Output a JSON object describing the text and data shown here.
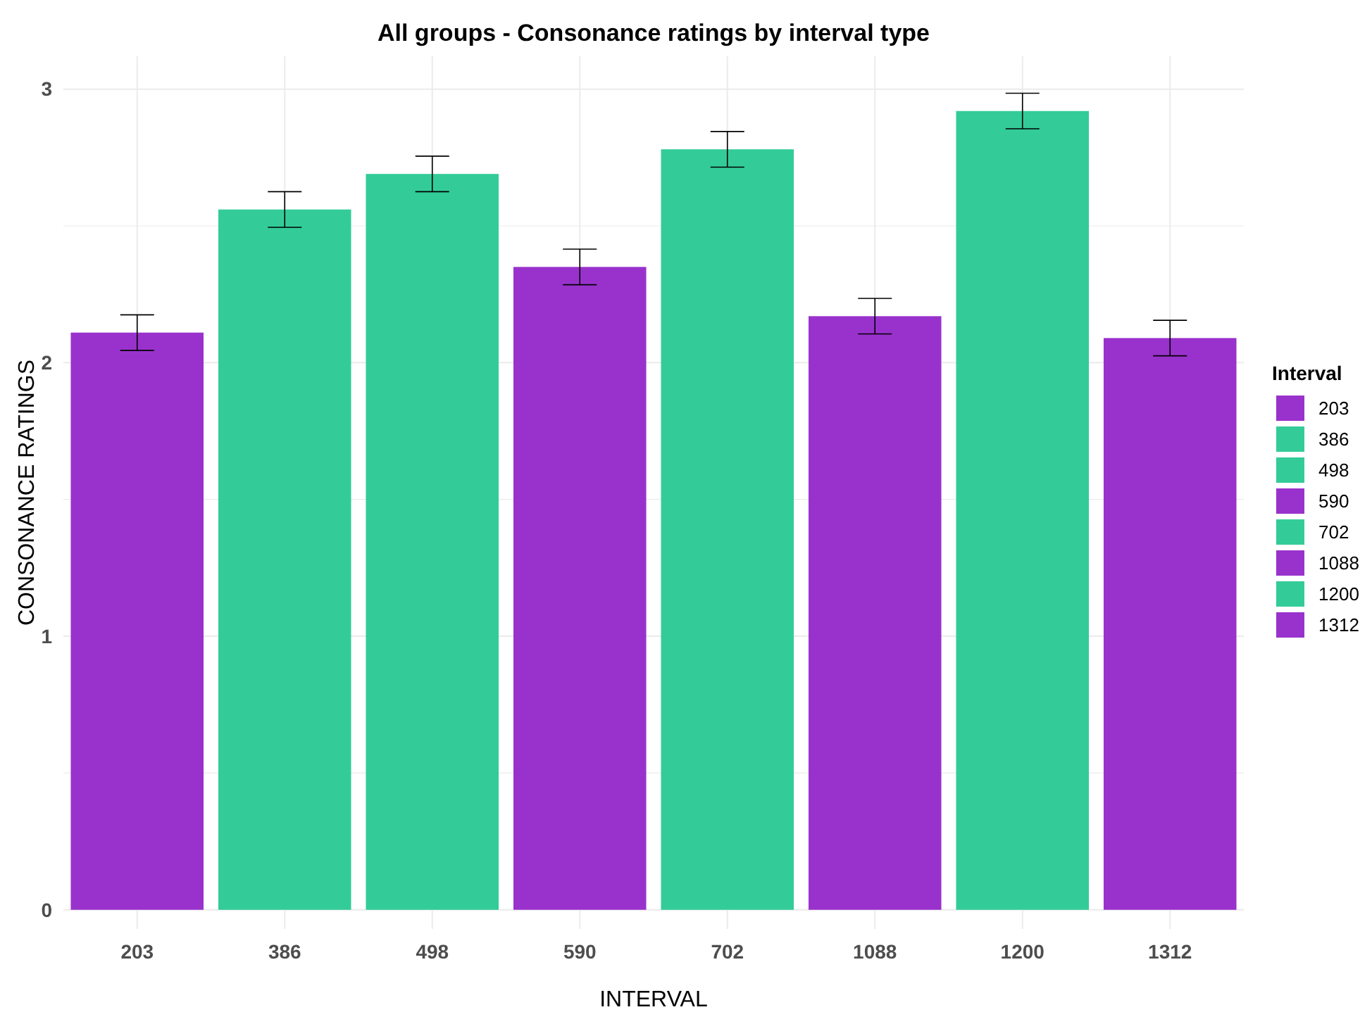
{
  "chart_data": {
    "type": "bar",
    "title": "All groups - Consonance ratings by interval type",
    "xlabel": "INTERVAL",
    "ylabel": "CONSONANCE RATINGS",
    "legend_title": "Interval",
    "categories": [
      "203",
      "386",
      "498",
      "590",
      "702",
      "1088",
      "1200",
      "1312"
    ],
    "series": [
      {
        "name": "203",
        "color": "#9932cc",
        "values": [
          2.11,
          null,
          null,
          null,
          null,
          null,
          null,
          null
        ],
        "errors": [
          0.065,
          null,
          null,
          null,
          null,
          null,
          null,
          null
        ]
      },
      {
        "name": "386",
        "color": "#33cc99",
        "values": [
          null,
          2.56,
          null,
          null,
          null,
          null,
          null,
          null
        ],
        "errors": [
          null,
          0.065,
          null,
          null,
          null,
          null,
          null,
          null
        ]
      },
      {
        "name": "498",
        "color": "#33cc99",
        "values": [
          null,
          null,
          2.69,
          null,
          null,
          null,
          null,
          null
        ],
        "errors": [
          null,
          null,
          0.065,
          null,
          null,
          null,
          null,
          null
        ]
      },
      {
        "name": "590",
        "color": "#9932cc",
        "values": [
          null,
          null,
          null,
          2.35,
          null,
          null,
          null,
          null
        ],
        "errors": [
          null,
          null,
          null,
          0.065,
          null,
          null,
          null,
          null
        ]
      },
      {
        "name": "702",
        "color": "#33cc99",
        "values": [
          null,
          null,
          null,
          null,
          2.78,
          null,
          null,
          null
        ],
        "errors": [
          null,
          null,
          null,
          null,
          0.065,
          null,
          null,
          null
        ]
      },
      {
        "name": "1088",
        "color": "#9932cc",
        "values": [
          null,
          null,
          null,
          null,
          null,
          2.17,
          null,
          null
        ],
        "errors": [
          null,
          null,
          null,
          null,
          null,
          0.065,
          null,
          null
        ]
      },
      {
        "name": "1200",
        "color": "#33cc99",
        "values": [
          null,
          null,
          null,
          null,
          null,
          null,
          2.92,
          null
        ],
        "errors": [
          null,
          null,
          null,
          null,
          null,
          null,
          0.065,
          null
        ]
      },
      {
        "name": "1312",
        "color": "#9932cc",
        "values": [
          null,
          null,
          null,
          null,
          null,
          null,
          null,
          2.09
        ],
        "errors": [
          null,
          null,
          null,
          null,
          null,
          null,
          null,
          0.065
        ]
      }
    ],
    "ylim": [
      -0.07,
      3.12
    ],
    "yticks": [
      0,
      {
        "value": 0.5,
        "label": null
      },
      1,
      {
        "value": 1.5,
        "label": null
      },
      2,
      {
        "value": 2.5,
        "label": null
      },
      3
    ],
    "grid": true,
    "legend": "right"
  }
}
